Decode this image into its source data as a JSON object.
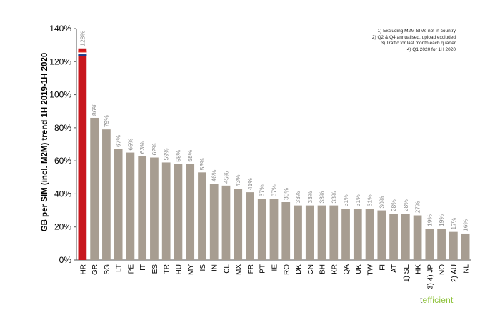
{
  "chart_data": {
    "type": "bar",
    "ylabel": "GB per SIM (incl. M2M) trend 1H 2019-1H 2020",
    "ylim": [
      0,
      140
    ],
    "yticks": [
      "0%",
      "20%",
      "40%",
      "60%",
      "80%",
      "100%",
      "120%",
      "140%"
    ],
    "categories": [
      "HR",
      "GR",
      "SG",
      "LT",
      "PE",
      "IT",
      "ES",
      "TR",
      "HU",
      "MY",
      "IS",
      "IN",
      "CL",
      "MX",
      "FR",
      "PT",
      "IE",
      "RO",
      "DK",
      "CN",
      "BH",
      "KR",
      "QA",
      "UK",
      "TW",
      "FI",
      "AT",
      "1) SE",
      "HK",
      "3) 4) JP",
      "NO",
      "2) AU",
      "NL"
    ],
    "values": [
      128,
      86,
      79,
      67,
      65,
      63,
      62,
      59,
      58,
      58,
      53,
      46,
      45,
      43,
      41,
      37,
      37,
      35,
      33,
      33,
      33,
      33,
      31,
      31,
      31,
      30,
      28,
      28,
      27,
      19,
      19,
      17,
      16
    ],
    "labels": [
      "128%",
      "86%",
      "79%",
      "67%",
      "65%",
      "63%",
      "62%",
      "59%",
      "58%",
      "58%",
      "53%",
      "46%",
      "45%",
      "43%",
      "41%",
      "37%",
      "37%",
      "35%",
      "33%",
      "33%",
      "33%",
      "33%",
      "31%",
      "31%",
      "31%",
      "30%",
      "28%",
      "28%",
      "27%",
      "19%",
      "19%",
      "17%",
      "16%"
    ],
    "highlight_index": 0,
    "colors": {
      "bar": "#a79d91",
      "highlight": "#c8161d",
      "label": "#8a8a8a",
      "axis": "#555555"
    },
    "grid": false,
    "annotations": [
      "1) Excluding M2M SIMs not in country",
      "2) Q2 & Q4 annualised, upload excluded",
      "3) Traffic for last month each quarter",
      "4) Q1 2020 for 1H 2020"
    ]
  },
  "flag_icon": "croatia-flag-icon",
  "logo": {
    "prefix": "t",
    "rest": "efficient"
  }
}
